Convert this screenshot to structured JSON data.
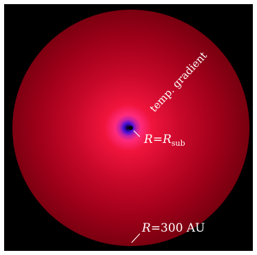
{
  "diagram": {
    "background_color": "#000000",
    "frame_color": "#ffffff",
    "disk_gradient": [
      {
        "stop": "0%",
        "color": "#000000"
      },
      {
        "stop": "1.5%",
        "color": "#1a0066"
      },
      {
        "stop": "4%",
        "color": "#4a10d8"
      },
      {
        "stop": "7%",
        "color": "#c020a8"
      },
      {
        "stop": "11%",
        "color": "#ff2a7a"
      },
      {
        "stop": "20%",
        "color": "#f0143c"
      },
      {
        "stop": "45%",
        "color": "#c8082a"
      },
      {
        "stop": "75%",
        "color": "#a0001a"
      },
      {
        "stop": "100%",
        "color": "#7a0010"
      }
    ],
    "labels": {
      "temp_gradient": "temp. gradient",
      "inner_R": "R",
      "inner_eq": "=",
      "inner_Rsub": "R",
      "inner_sub": "sub",
      "outer_R": "R",
      "outer_eq": "=300 AU"
    },
    "label_color": "#ffffff"
  }
}
